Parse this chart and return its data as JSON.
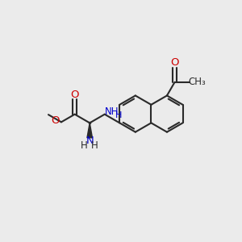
{
  "bg": "#ebebeb",
  "bc": "#2a2a2a",
  "nc": "#0000cc",
  "oc": "#cc0000",
  "lw": 1.5,
  "fs": 9,
  "dpi": 100,
  "xlim": [
    0,
    10
  ],
  "ylim": [
    0,
    10
  ]
}
